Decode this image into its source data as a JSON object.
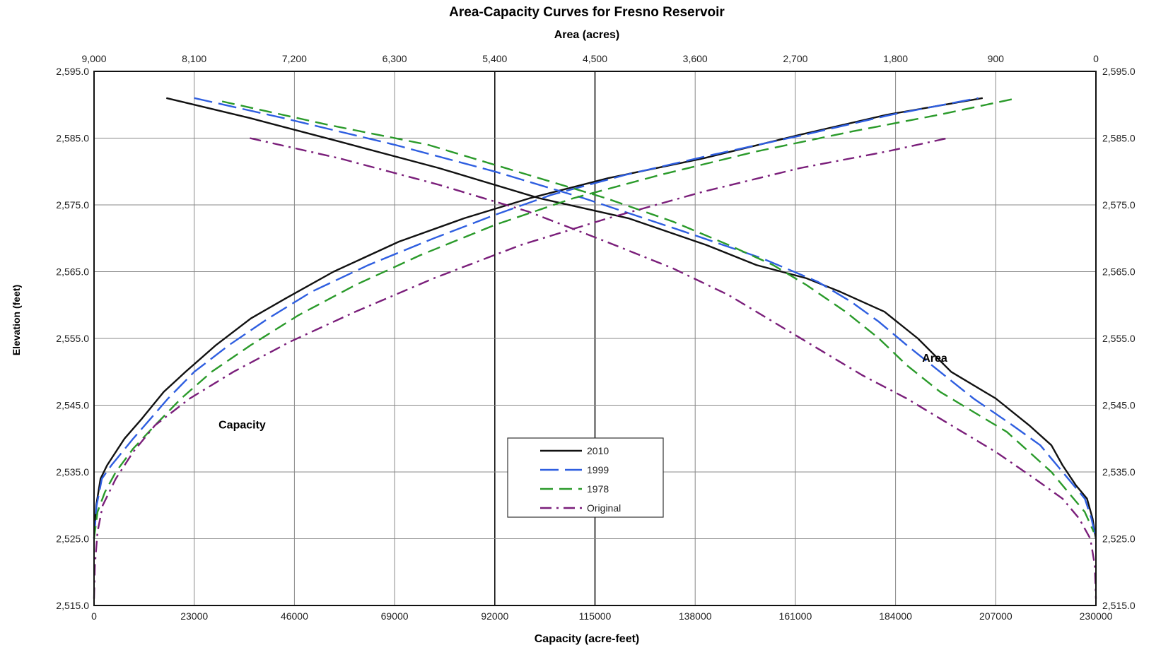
{
  "chart_data": {
    "type": "line",
    "title": "Area-Capacity Curves for Fresno Reservoir",
    "top_axis_label": "Area (acres)",
    "bottom_axis_label": "Capacity (acre-feet)",
    "left_axis_label": "Elevation (feet)",
    "top_ticks": [
      "9,000",
      "8,100",
      "7,200",
      "6,300",
      "5,400",
      "4,500",
      "3,600",
      "2,700",
      "1,800",
      "900",
      "0"
    ],
    "bottom_ticks": [
      "0",
      "23000",
      "46000",
      "69000",
      "92000",
      "115000",
      "138000",
      "161000",
      "184000",
      "207000",
      "230000"
    ],
    "left_ticks": [
      "2,595.0",
      "2,585.0",
      "2,575.0",
      "2,565.0",
      "2,555.0",
      "2,545.0",
      "2,535.0",
      "2,525.0",
      "2,515.0"
    ],
    "right_ticks": [
      "2,595.0",
      "2,585.0",
      "2,575.0",
      "2,565.0",
      "2,555.0",
      "2,545.0",
      "2,535.0",
      "2,525.0",
      "2,515.0"
    ],
    "capacity_xlim": [
      0,
      230000
    ],
    "area_xlim": [
      9000,
      0
    ],
    "ylim": [
      2515,
      2595
    ],
    "grid": true,
    "legend_position": "lower-center",
    "annotations": [
      {
        "text": "Capacity",
        "capacity": 34000,
        "elevation": 2541.5
      },
      {
        "text": "Area",
        "capacity": 193000,
        "elevation": 2551.5
      }
    ],
    "series": [
      {
        "name": "2010",
        "color": "#111111",
        "dash": "solid",
        "capacity": [
          [
            0,
            2525
          ],
          [
            500,
            2530
          ],
          [
            1500,
            2534
          ],
          [
            3000,
            2536
          ],
          [
            5000,
            2538
          ],
          [
            7000,
            2540
          ],
          [
            11000,
            2543
          ],
          [
            16000,
            2547
          ],
          [
            21000,
            2550
          ],
          [
            28000,
            2554
          ],
          [
            36000,
            2558
          ],
          [
            44000,
            2561
          ],
          [
            55000,
            2565
          ],
          [
            70000,
            2569.5
          ],
          [
            85000,
            2573
          ],
          [
            100000,
            2576
          ],
          [
            118000,
            2579
          ],
          [
            140000,
            2582
          ],
          [
            162000,
            2585.5
          ],
          [
            182000,
            2588.5
          ],
          [
            204000,
            2591
          ]
        ],
        "area": [
          [
            8350,
            2591
          ],
          [
            7600,
            2588
          ],
          [
            6800,
            2584.5
          ],
          [
            5900,
            2580.5
          ],
          [
            5000,
            2576
          ],
          [
            4200,
            2573
          ],
          [
            3500,
            2569
          ],
          [
            3050,
            2566
          ],
          [
            2600,
            2564
          ],
          [
            2300,
            2562
          ],
          [
            1900,
            2559
          ],
          [
            1600,
            2555
          ],
          [
            1300,
            2550
          ],
          [
            900,
            2546
          ],
          [
            600,
            2542
          ],
          [
            400,
            2539
          ],
          [
            300,
            2536
          ],
          [
            180,
            2533
          ],
          [
            80,
            2531
          ],
          [
            30,
            2528
          ],
          [
            0,
            2525
          ]
        ]
      },
      {
        "name": "1999",
        "color": "#2e5ee0",
        "dash": "long-dash",
        "capacity": [
          [
            0,
            2525
          ],
          [
            600,
            2530
          ],
          [
            1800,
            2534
          ],
          [
            4000,
            2536
          ],
          [
            6500,
            2538
          ],
          [
            9000,
            2540
          ],
          [
            13000,
            2543
          ],
          [
            17000,
            2546
          ],
          [
            23000,
            2550
          ],
          [
            31000,
            2554
          ],
          [
            40000,
            2558
          ],
          [
            50000,
            2562
          ],
          [
            63000,
            2566
          ],
          [
            78000,
            2570
          ],
          [
            92000,
            2573.5
          ],
          [
            105000,
            2576.5
          ],
          [
            122000,
            2579.5
          ],
          [
            142000,
            2582.5
          ],
          [
            163000,
            2585.5
          ],
          [
            183000,
            2588.5
          ],
          [
            203000,
            2591
          ]
        ],
        "area": [
          [
            8100,
            2591
          ],
          [
            7300,
            2588
          ],
          [
            6300,
            2584
          ],
          [
            5400,
            2580
          ],
          [
            4600,
            2576
          ],
          [
            3700,
            2571
          ],
          [
            3000,
            2567
          ],
          [
            2500,
            2563.5
          ],
          [
            2200,
            2560.5
          ],
          [
            1950,
            2557.5
          ],
          [
            1700,
            2554
          ],
          [
            1400,
            2550
          ],
          [
            1100,
            2546
          ],
          [
            750,
            2542
          ],
          [
            500,
            2539
          ],
          [
            350,
            2536
          ],
          [
            200,
            2533
          ],
          [
            100,
            2531
          ],
          [
            40,
            2528
          ],
          [
            0,
            2525
          ]
        ]
      },
      {
        "name": "1978",
        "color": "#2a9a2a",
        "dash": "dash",
        "capacity": [
          [
            0,
            2525
          ],
          [
            800,
            2529
          ],
          [
            2500,
            2532
          ],
          [
            5000,
            2535
          ],
          [
            9000,
            2538.5
          ],
          [
            14000,
            2542
          ],
          [
            20000,
            2546
          ],
          [
            27000,
            2550
          ],
          [
            36000,
            2554
          ],
          [
            47000,
            2558.5
          ],
          [
            60000,
            2563
          ],
          [
            75000,
            2567.5
          ],
          [
            92000,
            2572
          ],
          [
            110000,
            2576
          ],
          [
            130000,
            2579.5
          ],
          [
            152000,
            2583
          ],
          [
            174000,
            2586
          ],
          [
            194000,
            2588.5
          ],
          [
            212000,
            2591
          ]
        ],
        "area": [
          [
            7850,
            2590.5
          ],
          [
            6900,
            2587
          ],
          [
            6000,
            2584
          ],
          [
            5200,
            2580
          ],
          [
            4400,
            2576
          ],
          [
            3800,
            2572.5
          ],
          [
            3300,
            2569
          ],
          [
            2900,
            2566
          ],
          [
            2600,
            2563
          ],
          [
            2250,
            2559
          ],
          [
            1950,
            2555
          ],
          [
            1700,
            2551
          ],
          [
            1400,
            2547
          ],
          [
            1100,
            2544
          ],
          [
            800,
            2541
          ],
          [
            600,
            2538
          ],
          [
            400,
            2535
          ],
          [
            250,
            2532
          ],
          [
            100,
            2529
          ],
          [
            20,
            2526
          ]
        ]
      },
      {
        "name": "Original",
        "color": "#7a1e7a",
        "dash": "dash-dot",
        "capacity": [
          [
            0,
            2516
          ],
          [
            200,
            2521
          ],
          [
            800,
            2526
          ],
          [
            2000,
            2530
          ],
          [
            5000,
            2534
          ],
          [
            9000,
            2538
          ],
          [
            14000,
            2542
          ],
          [
            22000,
            2546
          ],
          [
            32000,
            2550
          ],
          [
            45000,
            2554.5
          ],
          [
            60000,
            2559
          ],
          [
            78000,
            2564
          ],
          [
            98000,
            2569
          ],
          [
            118000,
            2573
          ],
          [
            140000,
            2577
          ],
          [
            162000,
            2580.5
          ],
          [
            182000,
            2583
          ],
          [
            196000,
            2585
          ]
        ],
        "area": [
          [
            7600,
            2585
          ],
          [
            6800,
            2582
          ],
          [
            5900,
            2578
          ],
          [
            5100,
            2574
          ],
          [
            4400,
            2569.5
          ],
          [
            3800,
            2565.5
          ],
          [
            3300,
            2561.5
          ],
          [
            2900,
            2557.5
          ],
          [
            2500,
            2553.5
          ],
          [
            2100,
            2549.5
          ],
          [
            1700,
            2546
          ],
          [
            1300,
            2542
          ],
          [
            900,
            2538
          ],
          [
            550,
            2534
          ],
          [
            300,
            2531
          ],
          [
            150,
            2528
          ],
          [
            50,
            2525
          ],
          [
            10,
            2521
          ],
          [
            0,
            2516
          ]
        ]
      }
    ]
  }
}
